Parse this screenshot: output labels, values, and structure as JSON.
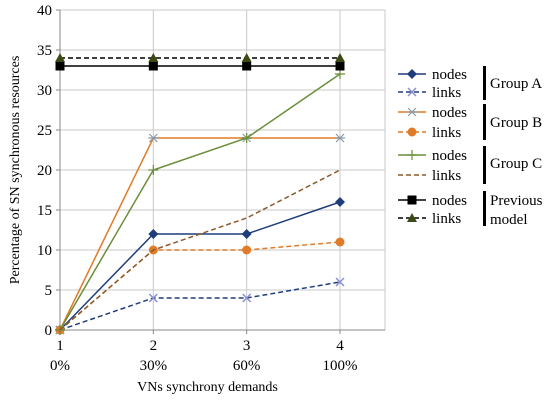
{
  "chart_data": {
    "type": "line",
    "title": "",
    "xlabel": "VNs synchrony demands",
    "ylabel": "Percentage of SN synchronous resources",
    "x": [
      1,
      2,
      3,
      4
    ],
    "x_tick_labels": [
      "1",
      "2",
      "3",
      "4"
    ],
    "x_tick_sublabels": [
      "0%",
      "30%",
      "60%",
      "100%"
    ],
    "ylim": [
      0,
      40
    ],
    "y_ticks": [
      0,
      5,
      10,
      15,
      20,
      25,
      30,
      35,
      40
    ],
    "grid": "horizontal-and-vertical",
    "legend_position": "right",
    "groups": [
      "Group A",
      "Group B",
      "Group C",
      "Previous model"
    ],
    "series": [
      {
        "name": "nodes",
        "group": "Group A",
        "values": [
          0,
          12,
          12,
          16
        ],
        "color": "#1f3d7a",
        "dash": "solid",
        "marker": "diamond"
      },
      {
        "name": "links",
        "group": "Group A",
        "values": [
          0,
          4,
          4,
          6
        ],
        "color": "#1f3d7a",
        "dash": "dashed",
        "marker": "x",
        "marker_color": "#8a8fd0"
      },
      {
        "name": "nodes",
        "group": "Group B",
        "values": [
          0,
          24,
          24,
          24
        ],
        "color": "#e07b28",
        "dash": "solid",
        "marker": "star",
        "marker_color": "#8a9aa8"
      },
      {
        "name": "links",
        "group": "Group B",
        "values": [
          0,
          10,
          10,
          11
        ],
        "color": "#e07b28",
        "dash": "dashed",
        "marker": "circle"
      },
      {
        "name": "nodes",
        "group": "Group C",
        "values": [
          0,
          20,
          24,
          32
        ],
        "color": "#6b8e3a",
        "dash": "solid",
        "marker": "plus"
      },
      {
        "name": "links",
        "group": "Group C",
        "values": [
          0,
          10,
          14,
          20
        ],
        "color": "#8b5a2b",
        "dash": "dashed",
        "marker": "none"
      },
      {
        "name": "nodes",
        "group": "Previous model",
        "values": [
          33,
          33,
          33,
          33
        ],
        "color": "#000000",
        "dash": "solid",
        "marker": "square"
      },
      {
        "name": "links",
        "group": "Previous model",
        "values": [
          34,
          34,
          34,
          34
        ],
        "color": "#000000",
        "dash": "dashed",
        "marker": "triangle",
        "marker_color": "#3d4a14"
      }
    ]
  }
}
